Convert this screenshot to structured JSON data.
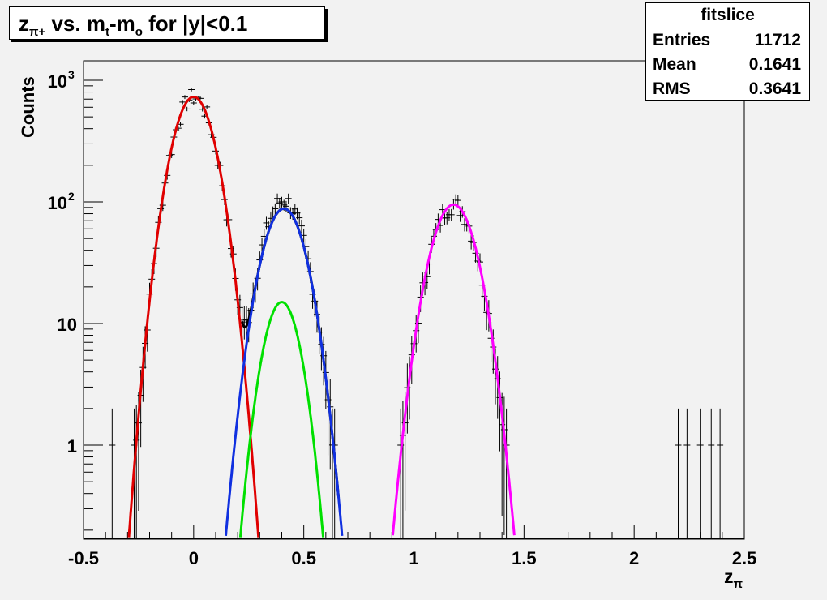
{
  "title": {
    "prefix": "z",
    "prefix_sub": "π+",
    "mid": " vs. m",
    "mid_sub": "t",
    "dash": "-m",
    "dash_sub": "o",
    "suffix": " for |y|<0.1"
  },
  "stats": {
    "title": "fitslice",
    "rows": [
      {
        "label": "Entries",
        "value": "11712"
      },
      {
        "label": "Mean",
        "value": "0.1641"
      },
      {
        "label": "RMS",
        "value": "0.3641"
      }
    ]
  },
  "axes": {
    "ylabel": "Counts",
    "xlabel_main": "z",
    "xlabel_sub": "π"
  },
  "chart_data": {
    "type": "line",
    "xlim": [
      -0.5,
      2.5
    ],
    "ylim": [
      0.17,
      1500
    ],
    "yscale": "log",
    "grid": false,
    "legend": "none",
    "x_ticks": [
      {
        "value": -0.5,
        "label": "-0.5"
      },
      {
        "value": 0,
        "label": "0"
      },
      {
        "value": 0.5,
        "label": "0.5"
      },
      {
        "value": 1,
        "label": "1"
      },
      {
        "value": 1.5,
        "label": "1.5"
      },
      {
        "value": 2,
        "label": "2"
      },
      {
        "value": 2.5,
        "label": "2.5"
      }
    ],
    "y_ticks": [
      {
        "value": 1,
        "label": "1"
      },
      {
        "value": 10,
        "label": "10"
      },
      {
        "value": 100,
        "label": "10",
        "sup": "2"
      },
      {
        "value": 1000,
        "label": "10",
        "sup": "3"
      }
    ],
    "fits": [
      {
        "color": "#e00000",
        "amplitude": 730,
        "mean": 0.0,
        "sigma": 0.072
      },
      {
        "color": "#1030e0",
        "amplitude": 88,
        "mean": 0.41,
        "sigma": 0.075
      },
      {
        "color": "#00e000",
        "amplitude": 15,
        "mean": 0.4,
        "sigma": 0.063
      },
      {
        "color": "#ff00ff",
        "amplitude": 95,
        "mean": 1.18,
        "sigma": 0.078
      }
    ],
    "total_fit": {
      "color": "#000000",
      "x_range": [
        0.22,
        0.66
      ],
      "components": [
        0,
        1
      ]
    },
    "isolated_points": [
      {
        "x": -0.37,
        "y": 1
      },
      {
        "x": 2.2,
        "y": 1
      },
      {
        "x": 2.24,
        "y": 1
      },
      {
        "x": 2.3,
        "y": 1
      },
      {
        "x": 2.35,
        "y": 1
      },
      {
        "x": 2.39,
        "y": 1
      }
    ]
  }
}
